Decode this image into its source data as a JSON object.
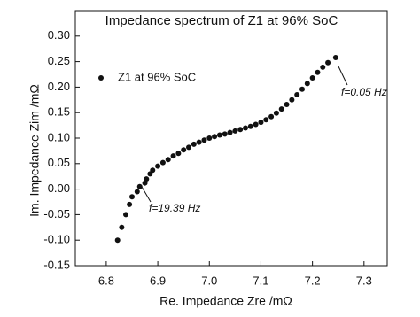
{
  "chart_data": {
    "type": "scatter",
    "title": "Impedance spectrum of Z1 at 96% SoC",
    "x_label": "Re. Impedance Zre /mΩ",
    "y_label": "Im. Impedance Zim /mΩ",
    "series": [
      {
        "name": "Z1 at 96% SoC",
        "color": "#111111",
        "x": [
          6.822,
          6.83,
          6.838,
          6.845,
          6.85,
          6.86,
          6.865,
          6.875,
          6.878,
          6.885,
          6.89,
          6.9,
          6.91,
          6.92,
          6.93,
          6.94,
          6.95,
          6.96,
          6.97,
          6.98,
          6.99,
          7.0,
          7.01,
          7.02,
          7.03,
          7.04,
          7.05,
          7.06,
          7.07,
          7.08,
          7.09,
          7.1,
          7.11,
          7.12,
          7.13,
          7.14,
          7.15,
          7.16,
          7.17,
          7.18,
          7.19,
          7.2,
          7.21,
          7.22,
          7.23,
          7.245
        ],
        "values": [
          -0.1,
          -0.075,
          -0.05,
          -0.03,
          -0.015,
          -0.005,
          0.005,
          0.012,
          0.02,
          0.03,
          0.037,
          0.045,
          0.052,
          0.058,
          0.065,
          0.07,
          0.077,
          0.082,
          0.088,
          0.092,
          0.096,
          0.1,
          0.103,
          0.106,
          0.108,
          0.111,
          0.114,
          0.117,
          0.12,
          0.123,
          0.127,
          0.131,
          0.136,
          0.142,
          0.149,
          0.157,
          0.166,
          0.175,
          0.185,
          0.196,
          0.207,
          0.218,
          0.229,
          0.239,
          0.248,
          0.258
        ]
      }
    ],
    "annotations": [
      "f=0.05 Hz",
      "f=19.39 Hz"
    ],
    "xlim": [
      6.74,
      7.345
    ],
    "xticks": [
      6.8,
      6.9,
      {
        "value": 7,
        "label": "7.0"
      },
      7.1,
      7.2,
      7.3
    ],
    "ylim": [
      -0.15,
      0.35
    ],
    "yticks": [
      -0.15,
      {
        "value": -0.1,
        "label": "-0.10"
      },
      -0.05,
      {
        "value": 0,
        "label": "0.00"
      },
      0.05,
      {
        "value": 0.1,
        "label": "0.10"
      },
      0.15,
      {
        "value": 0.2,
        "label": "0.20"
      },
      0.25,
      {
        "value": 0.3,
        "label": "0.30"
      }
    ],
    "grid": false,
    "legend": "upper-left"
  }
}
